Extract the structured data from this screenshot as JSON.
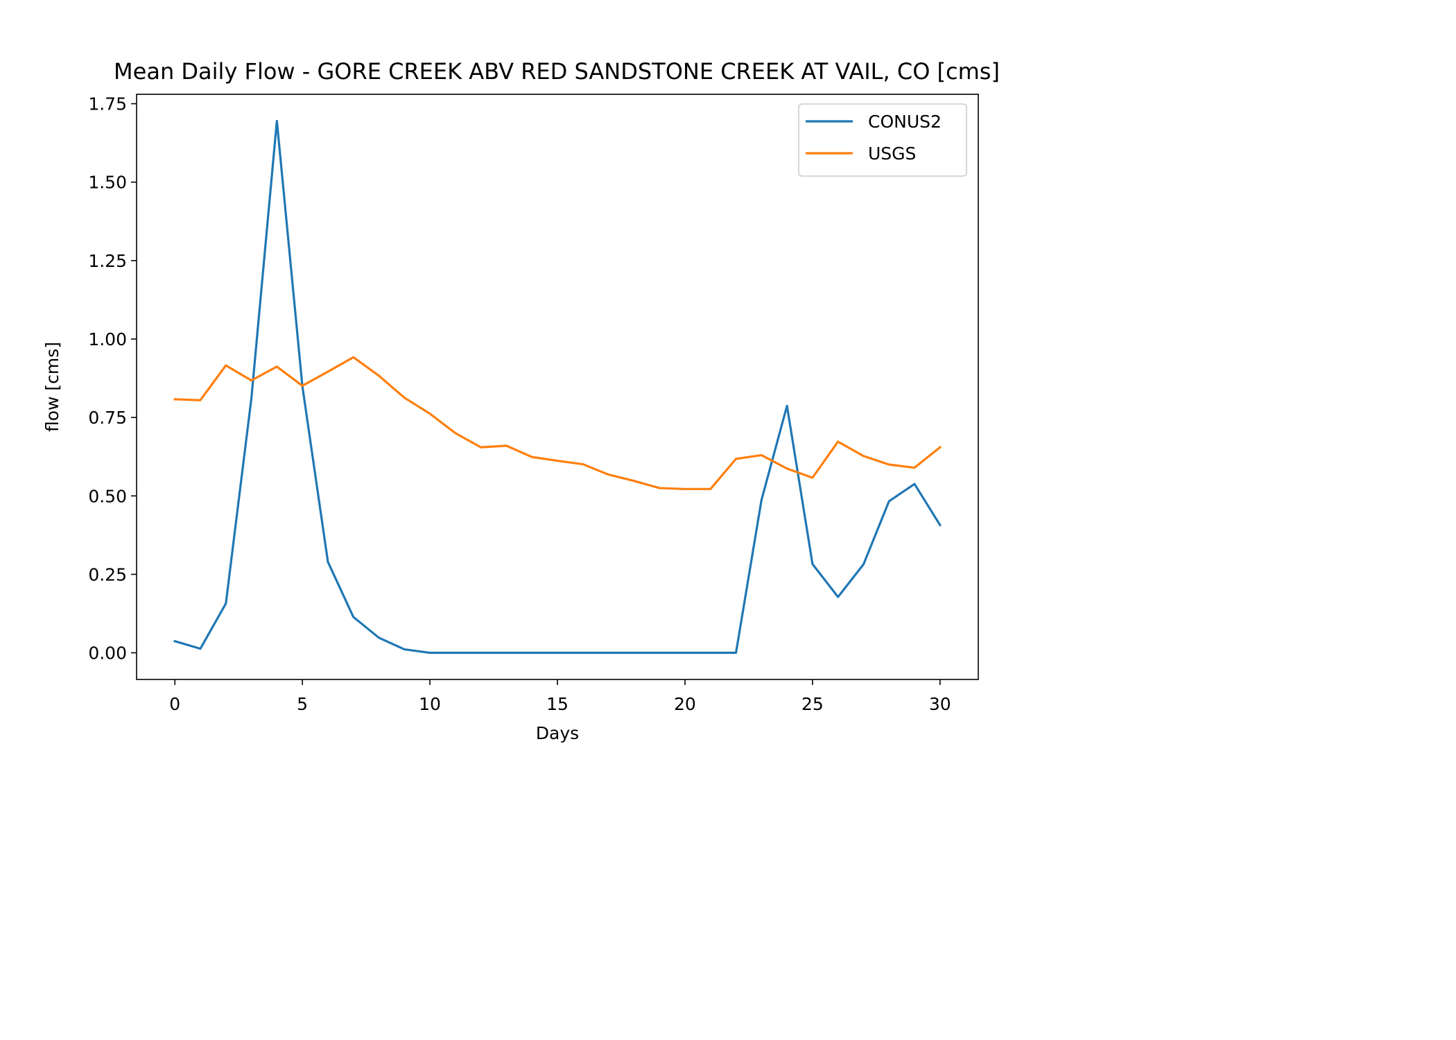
{
  "chart_data": {
    "type": "line",
    "title": "Mean Daily Flow - GORE CREEK ABV RED SANDSTONE CREEK AT VAIL, CO [cms]",
    "xlabel": "Days",
    "ylabel": "flow [cms]",
    "xlim": [
      -1.5,
      31.5
    ],
    "ylim": [
      -0.085,
      1.78
    ],
    "x_ticks": [
      0,
      5,
      10,
      15,
      20,
      25,
      30
    ],
    "x_tick_labels": [
      "0",
      "5",
      "10",
      "15",
      "20",
      "25",
      "30"
    ],
    "y_ticks": [
      0,
      0.25,
      0.5,
      0.75,
      1.0,
      1.25,
      1.5,
      1.75
    ],
    "y_tick_labels": [
      "0.00",
      "0.25",
      "0.50",
      "0.75",
      "1.00",
      "1.25",
      "1.50",
      "1.75"
    ],
    "grid": false,
    "legend_position": "top-right",
    "x": [
      0,
      1,
      2,
      3,
      4,
      5,
      6,
      7,
      8,
      9,
      10,
      11,
      12,
      13,
      14,
      15,
      16,
      17,
      18,
      19,
      20,
      21,
      22,
      23,
      24,
      25,
      26,
      27,
      28,
      29,
      30
    ],
    "series": [
      {
        "name": "CONUS2",
        "color": "#1f77b4",
        "values": [
          0.037,
          0.013,
          0.157,
          0.81,
          1.695,
          0.85,
          0.29,
          0.114,
          0.048,
          0.011,
          0.0,
          0.0,
          0.0,
          0.0,
          0.0,
          0.0,
          0.0,
          0.0,
          0.0,
          0.0,
          0.0,
          0.0,
          0.0,
          0.487,
          0.787,
          0.283,
          0.178,
          0.282,
          0.483,
          0.538,
          0.407
        ]
      },
      {
        "name": "USGS",
        "color": "#ff7f0e",
        "values": [
          0.808,
          0.805,
          0.916,
          0.868,
          0.912,
          0.851,
          0.896,
          0.942,
          0.883,
          0.813,
          0.762,
          0.7,
          0.655,
          0.66,
          0.624,
          0.612,
          0.601,
          0.568,
          0.548,
          0.525,
          0.522,
          0.522,
          0.618,
          0.63,
          0.587,
          0.558,
          0.673,
          0.627,
          0.6,
          0.59,
          0.655
        ]
      }
    ]
  }
}
